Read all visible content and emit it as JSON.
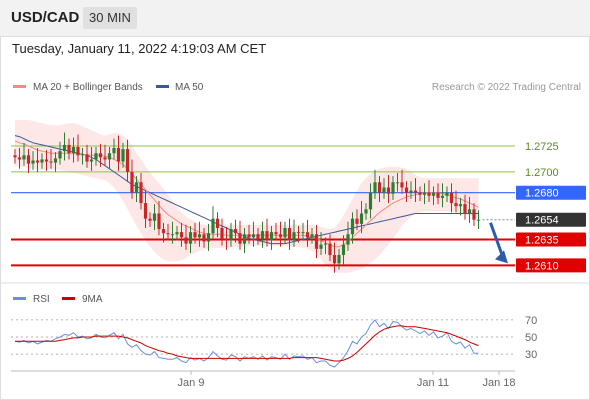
{
  "header": {
    "pair": "USD/CAD",
    "timeframe": "30 MIN"
  },
  "timestamp": "Tuesday, January 11, 2022 4:19:03 AM CET",
  "legend": {
    "ma20": "MA 20 + Bollinger Bands",
    "ma50": "MA 50",
    "rsi": "RSI",
    "rsi_ma": "9MA"
  },
  "copyright": "Research © 2022 Trading Central",
  "colors": {
    "up": "#2e7d32",
    "down": "#c62828",
    "ma20": "#f28b82",
    "ma50": "#3b5998",
    "band": "#fde4e4",
    "resistance": "#8bc34a",
    "pivot": "#3366ff",
    "support": "#e00000",
    "rsi": "#6a8fd8",
    "rsi_ma": "#cc0000"
  },
  "chart_data": [
    {
      "type": "candlestick",
      "ylim": [
        1.2595,
        1.2775
      ],
      "x_ticks": [
        "Jan 9",
        "Jan 11",
        "Jan 18"
      ],
      "levels": [
        {
          "value": 1.2725,
          "label": "1.2725",
          "kind": "resistance"
        },
        {
          "value": 1.27,
          "label": "1.2700",
          "kind": "resistance"
        },
        {
          "value": 1.268,
          "label": "1.2680",
          "kind": "pivot"
        },
        {
          "value": 1.2654,
          "label": "1.2654",
          "kind": "last"
        },
        {
          "value": 1.2635,
          "label": "1.2635",
          "kind": "support"
        },
        {
          "value": 1.261,
          "label": "1.2610",
          "kind": "support"
        }
      ],
      "close": [
        1.2714,
        1.2712,
        1.2716,
        1.2708,
        1.2711,
        1.2709,
        1.2712,
        1.271,
        1.2709,
        1.2713,
        1.272,
        1.2726,
        1.2718,
        1.2724,
        1.2716,
        1.2717,
        1.271,
        1.2712,
        1.2718,
        1.2714,
        1.2712,
        1.2718,
        1.2723,
        1.271,
        1.2722,
        1.27,
        1.268,
        1.269,
        1.267,
        1.2655,
        1.2653,
        1.266,
        1.2645,
        1.2641,
        1.264,
        1.264,
        1.2642,
        1.2637,
        1.2631,
        1.2642,
        1.2637,
        1.264,
        1.2633,
        1.2641,
        1.2655,
        1.2646,
        1.2635,
        1.2634,
        1.2645,
        1.2641,
        1.2631,
        1.264,
        1.2637,
        1.264,
        1.2636,
        1.2643,
        1.2634,
        1.2642,
        1.264,
        1.2637,
        1.2646,
        1.2634,
        1.2642,
        1.2641,
        1.2642,
        1.2637,
        1.264,
        1.2626,
        1.263,
        1.2631,
        1.262,
        1.2612,
        1.262,
        1.263,
        1.264,
        1.2655,
        1.265,
        1.266,
        1.2664,
        1.268,
        1.269,
        1.268,
        1.2685,
        1.2679,
        1.269,
        1.269,
        1.2685,
        1.268,
        1.2682,
        1.268,
        1.2678,
        1.268,
        1.2677,
        1.268,
        1.2675,
        1.2677,
        1.268,
        1.267,
        1.2667,
        1.2669,
        1.266,
        1.2664,
        1.2654,
        1.2654
      ],
      "ma20": [
        1.273,
        1.2728,
        1.2727,
        1.2725,
        1.2723,
        1.2721,
        1.272,
        1.2719,
        1.2718,
        1.2718,
        1.2718,
        1.2718,
        1.2718,
        1.2718,
        1.2717,
        1.2717,
        1.2716,
        1.2716,
        1.2716,
        1.2716,
        1.2715,
        1.2714,
        1.2712,
        1.271,
        1.2707,
        1.2703,
        1.2698,
        1.2693,
        1.2688,
        1.2683,
        1.2678,
        1.2673,
        1.2668,
        1.2663,
        1.2659,
        1.2656,
        1.2653,
        1.265,
        1.2648,
        1.2646,
        1.2644,
        1.2642,
        1.2641,
        1.264,
        1.264,
        1.264,
        1.264,
        1.2639,
        1.2639,
        1.2639,
        1.2639,
        1.2639,
        1.2639,
        1.2639,
        1.2639,
        1.2639,
        1.2639,
        1.2639,
        1.2639,
        1.2639,
        1.2639,
        1.2639,
        1.2639,
        1.2639,
        1.2639,
        1.2638,
        1.2637,
        1.2636,
        1.2634,
        1.2632,
        1.263,
        1.2628,
        1.2628,
        1.263,
        1.2633,
        1.2637,
        1.2641,
        1.2645,
        1.2649,
        1.2653,
        1.2657,
        1.2661,
        1.2664,
        1.2667,
        1.267,
        1.2672,
        1.2674,
        1.2676,
        1.2677,
        1.2678,
        1.2679,
        1.268,
        1.268,
        1.268,
        1.268,
        1.2679,
        1.2678,
        1.2677,
        1.2675,
        1.2674,
        1.2672,
        1.267,
        1.2668,
        1.2666
      ],
      "ma50": [
        1.2735,
        1.2734,
        1.2732,
        1.273,
        1.2728,
        1.2727,
        1.2726,
        1.2725,
        1.2724,
        1.2723,
        1.2722,
        1.2721,
        1.272,
        1.2719,
        1.2718,
        1.2717,
        1.2716,
        1.2714,
        1.2712,
        1.2709,
        1.2706,
        1.2703,
        1.27,
        1.2697,
        1.2694,
        1.2691,
        1.2688,
        1.2686,
        1.2684,
        1.2682,
        1.268,
        1.2678,
        1.2676,
        1.2674,
        1.2672,
        1.267,
        1.2668,
        1.2666,
        1.2664,
        1.2662,
        1.266,
        1.2658,
        1.2656,
        1.2654,
        1.2652,
        1.265,
        1.2648,
        1.2646,
        1.2644,
        1.2642,
        1.264,
        1.2638,
        1.2636,
        1.2635,
        1.2634,
        1.2633,
        1.2632,
        1.2631,
        1.2631,
        1.2631,
        1.2631,
        1.2632,
        1.2633,
        1.2634,
        1.2635,
        1.2636,
        1.2637,
        1.2638,
        1.2639,
        1.264,
        1.2641,
        1.2642,
        1.2643,
        1.2644,
        1.2645,
        1.2646,
        1.2647,
        1.2648,
        1.2649,
        1.265,
        1.2651,
        1.2652,
        1.2653,
        1.2654,
        1.2655,
        1.2656,
        1.2657,
        1.2658,
        1.2659,
        1.266,
        1.266,
        1.266,
        1.266,
        1.266,
        1.266,
        1.266,
        1.266,
        1.266,
        1.266,
        1.266,
        1.266,
        1.266,
        1.266,
        1.266
      ],
      "bb_upper": [
        1.275,
        1.275,
        1.275,
        1.275,
        1.2749,
        1.2748,
        1.2747,
        1.2746,
        1.2745,
        1.2745,
        1.2745,
        1.2746,
        1.2747,
        1.2747,
        1.2746,
        1.2744,
        1.2742,
        1.274,
        1.2738,
        1.2736,
        1.2735,
        1.2736,
        1.2738,
        1.2737,
        1.2735,
        1.2731,
        1.2725,
        1.2718,
        1.2712,
        1.2705,
        1.27,
        1.2694,
        1.2689,
        1.2684,
        1.2678,
        1.2672,
        1.2666,
        1.2661,
        1.2657,
        1.2654,
        1.2652,
        1.265,
        1.2649,
        1.2649,
        1.2649,
        1.2649,
        1.2649,
        1.2649,
        1.2649,
        1.2649,
        1.2649,
        1.2649,
        1.2649,
        1.2649,
        1.2649,
        1.2649,
        1.2649,
        1.2649,
        1.2649,
        1.2649,
        1.2649,
        1.2649,
        1.2649,
        1.2649,
        1.2649,
        1.2649,
        1.2649,
        1.2648,
        1.2647,
        1.2646,
        1.2645,
        1.2646,
        1.2651,
        1.2658,
        1.2666,
        1.2674,
        1.2682,
        1.2689,
        1.2694,
        1.2698,
        1.2701,
        1.2703,
        1.2704,
        1.2705,
        1.2705,
        1.2705,
        1.2704,
        1.2703,
        1.27,
        1.2697,
        1.2695,
        1.2694,
        1.2694,
        1.2694,
        1.2694,
        1.2694,
        1.2694,
        1.2694,
        1.2694,
        1.2694,
        1.2694,
        1.2694,
        1.2694,
        1.2694
      ],
      "bb_lower": [
        1.2705,
        1.2705,
        1.2705,
        1.2704,
        1.2703,
        1.2702,
        1.2702,
        1.2702,
        1.2702,
        1.2702,
        1.2702,
        1.2701,
        1.27,
        1.2699,
        1.2698,
        1.2697,
        1.2696,
        1.2695,
        1.2694,
        1.2693,
        1.2692,
        1.2689,
        1.2685,
        1.2679,
        1.2672,
        1.2664,
        1.2656,
        1.2648,
        1.2641,
        1.2634,
        1.2628,
        1.2623,
        1.2619,
        1.2616,
        1.2614,
        1.2614,
        1.2614,
        1.2615,
        1.2617,
        1.262,
        1.2622,
        1.2624,
        1.2625,
        1.2626,
        1.2627,
        1.2627,
        1.2627,
        1.2627,
        1.2627,
        1.2628,
        1.2628,
        1.2628,
        1.2629,
        1.2629,
        1.2629,
        1.2629,
        1.2629,
        1.2629,
        1.2629,
        1.2629,
        1.2629,
        1.2629,
        1.2628,
        1.2628,
        1.2627,
        1.2626,
        1.2624,
        1.2621,
        1.2616,
        1.2611,
        1.2607,
        1.2604,
        1.2603,
        1.2603,
        1.2603,
        1.2604,
        1.2605,
        1.2607,
        1.2609,
        1.2612,
        1.2616,
        1.262,
        1.2625,
        1.263,
        1.2636,
        1.2642,
        1.2648,
        1.2653,
        1.2657,
        1.266,
        1.2661,
        1.2662,
        1.2662,
        1.2662,
        1.2662,
        1.2662,
        1.2662,
        1.2662,
        1.2661,
        1.266,
        1.2659,
        1.2658,
        1.2657,
        1.2656
      ],
      "forecast": {
        "from": 1.2654,
        "to": 1.261
      }
    },
    {
      "type": "line",
      "yticks": [
        70,
        50,
        30
      ],
      "ylim": [
        15,
        85
      ],
      "rsi": [
        45,
        44,
        46,
        43,
        45,
        42,
        44,
        46,
        45,
        48,
        50,
        53,
        52,
        55,
        50,
        51,
        48,
        49,
        53,
        50,
        49,
        52,
        55,
        48,
        53,
        42,
        38,
        41,
        34,
        30,
        29,
        33,
        26,
        25,
        24,
        24,
        26,
        22,
        20,
        26,
        23,
        25,
        22,
        26,
        33,
        28,
        24,
        23,
        29,
        27,
        22,
        27,
        25,
        27,
        24,
        28,
        23,
        27,
        26,
        24,
        30,
        24,
        28,
        27,
        28,
        24,
        26,
        20,
        22,
        22,
        17,
        15,
        20,
        26,
        34,
        45,
        42,
        50,
        54,
        64,
        70,
        62,
        66,
        60,
        68,
        67,
        62,
        58,
        60,
        57,
        54,
        57,
        52,
        56,
        49,
        51,
        55,
        45,
        42,
        44,
        37,
        41,
        31,
        31
      ],
      "rsi_ma": [
        45,
        45,
        45,
        45,
        45,
        45,
        45,
        45,
        45,
        45,
        46,
        47,
        48,
        49,
        49,
        50,
        50,
        50,
        51,
        51,
        51,
        51,
        51,
        51,
        50,
        49,
        47,
        45,
        43,
        40,
        38,
        36,
        34,
        33,
        31,
        30,
        28,
        27,
        26,
        25,
        25,
        25,
        25,
        25,
        25,
        25,
        25,
        25,
        25,
        25,
        25,
        25,
        25,
        25,
        25,
        25,
        25,
        25,
        25,
        25,
        25,
        25,
        26,
        26,
        26,
        26,
        26,
        26,
        25,
        24,
        23,
        22,
        22,
        23,
        25,
        28,
        32,
        37,
        42,
        47,
        52,
        56,
        59,
        61,
        62,
        63,
        63,
        62,
        62,
        62,
        61,
        60,
        59,
        58,
        57,
        56,
        55,
        53,
        51,
        49,
        47,
        44,
        42,
        40
      ]
    }
  ]
}
